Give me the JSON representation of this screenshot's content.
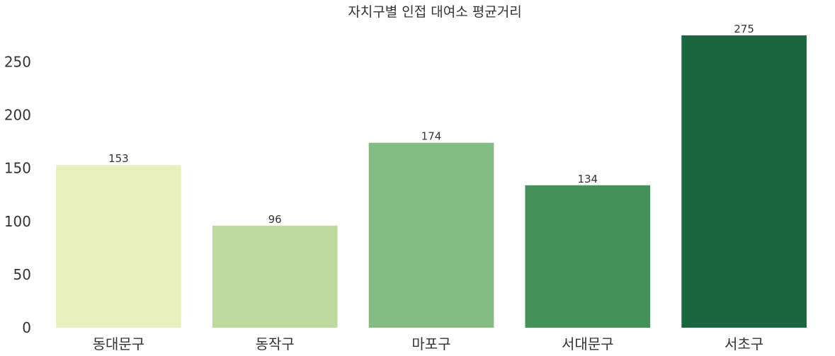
{
  "chart_data": {
    "type": "bar",
    "title": "자치구별 인접 대여소 평균거리",
    "xlabel": "",
    "ylabel": "",
    "categories": [
      "동대문구",
      "동작구",
      "마포구",
      "서대문구",
      "서초구"
    ],
    "values": [
      153,
      96,
      174,
      134,
      275
    ],
    "data_labels": [
      "153",
      "96",
      "174",
      "134",
      "275"
    ],
    "colors": [
      "#e8f1bd",
      "#bdda9f",
      "#83bd83",
      "#44915a",
      "#19663f"
    ],
    "y_ticks": [
      0,
      50,
      100,
      150,
      200,
      250
    ],
    "y_tick_labels": [
      "0",
      "50",
      "100",
      "150",
      "200",
      "250"
    ],
    "ylim": [
      0,
      275
    ],
    "grid": false,
    "legend": "none"
  }
}
